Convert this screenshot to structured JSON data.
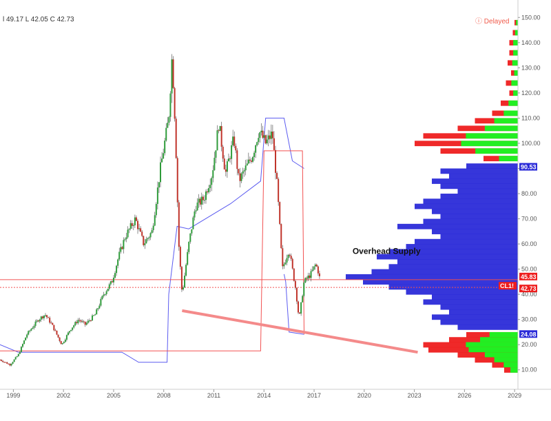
{
  "ohlc_readout": "l 49.17 L 42.05 C 42.73",
  "delayed_label": "Delayed",
  "colors": {
    "price_up": "#2e9b3a",
    "price_down": "#c0332a",
    "envelope": "#5a5af0",
    "level_line": "#f25050",
    "trend_line": "#f48a8a",
    "profile_blue": "#2b2bd8",
    "profile_green": "#22ee22",
    "profile_red": "#ee1d1d"
  },
  "chart_data": {
    "type": "candlestick",
    "xlabel": "",
    "ylabel": "",
    "x_ticks": [
      "1999",
      "2002",
      "2005",
      "2008",
      "2011",
      "2014",
      "2017",
      "2020",
      "2023",
      "2026",
      "2029"
    ],
    "y_ticks": [
      "10.00",
      "20.00",
      "30.00",
      "40.00",
      "50.00",
      "60.00",
      "70.00",
      "80.00",
      "90.00",
      "100.00",
      "110.00",
      "120.00",
      "130.00",
      "140.00",
      "150.00"
    ],
    "ylim": [
      5,
      152
    ],
    "xlim": [
      1998.2,
      2029.2
    ],
    "price_path": [
      [
        1998.2,
        14
      ],
      [
        1998.8,
        12
      ],
      [
        1999.3,
        16
      ],
      [
        1999.8,
        24
      ],
      [
        2000.5,
        30
      ],
      [
        2000.9,
        32
      ],
      [
        2001.3,
        28
      ],
      [
        2001.9,
        20
      ],
      [
        2002.4,
        26
      ],
      [
        2002.9,
        30
      ],
      [
        2003.3,
        28
      ],
      [
        2003.9,
        32
      ],
      [
        2004.4,
        40
      ],
      [
        2004.9,
        45
      ],
      [
        2005.3,
        55
      ],
      [
        2005.7,
        63
      ],
      [
        2006.3,
        70
      ],
      [
        2006.8,
        60
      ],
      [
        2007.3,
        65
      ],
      [
        2007.8,
        90
      ],
      [
        2008.3,
        110
      ],
      [
        2008.5,
        135
      ],
      [
        2008.7,
        105
      ],
      [
        2008.9,
        60
      ],
      [
        2009.1,
        40
      ],
      [
        2009.5,
        60
      ],
      [
        2009.9,
        75
      ],
      [
        2010.4,
        78
      ],
      [
        2010.9,
        88
      ],
      [
        2011.3,
        108
      ],
      [
        2011.7,
        88
      ],
      [
        2012.2,
        102
      ],
      [
        2012.5,
        85
      ],
      [
        2012.9,
        90
      ],
      [
        2013.3,
        95
      ],
      [
        2013.7,
        105
      ],
      [
        2014.1,
        100
      ],
      [
        2014.5,
        104
      ],
      [
        2014.8,
        82
      ],
      [
        2015.1,
        50
      ],
      [
        2015.5,
        58
      ],
      [
        2015.9,
        42
      ],
      [
        2016.1,
        30
      ],
      [
        2016.4,
        45
      ],
      [
        2016.8,
        48
      ],
      [
        2017.1,
        52
      ],
      [
        2017.3,
        48
      ],
      [
        2017.4,
        42.73
      ]
    ],
    "envelope": [
      [
        1998.2,
        20
      ],
      [
        1999.3,
        17
      ],
      [
        2001.5,
        17
      ],
      [
        2005.5,
        17
      ],
      [
        2006.5,
        13
      ],
      [
        2008.2,
        13
      ],
      [
        2008.3,
        40
      ],
      [
        2008.8,
        67
      ],
      [
        2009.5,
        66
      ],
      [
        2012.0,
        76
      ],
      [
        2013.8,
        85
      ],
      [
        2014.1,
        110
      ],
      [
        2015.2,
        110
      ],
      [
        2015.7,
        93
      ],
      [
        2016.4,
        90
      ]
    ],
    "support_envelope": [
      [
        2015.2,
        48
      ],
      [
        2015.3,
        45
      ],
      [
        2015.5,
        25
      ],
      [
        2016.4,
        24.08
      ]
    ],
    "step_line": [
      [
        1998.2,
        17.5
      ],
      [
        2013.8,
        17.5
      ],
      [
        2014.0,
        97
      ],
      [
        2016.3,
        97
      ],
      [
        2016.4,
        24.08
      ]
    ],
    "trend_line": [
      [
        2009.1,
        33.5
      ],
      [
        2023.2,
        17
      ]
    ],
    "levels": {
      "current_price": 42.73,
      "resistance": 45.83,
      "value_area_high": 90.53,
      "value_area_low": 24.08
    },
    "price_tags": [
      {
        "label": "90.53",
        "value": 90.53,
        "style": "blue"
      },
      {
        "label": "45.83",
        "value": 45.83,
        "style": "red"
      },
      {
        "label": "CL1!",
        "value": 42.73,
        "style": "red"
      },
      {
        "label": "42.73",
        "value": 42.73,
        "style": "red"
      },
      {
        "label": "24.08",
        "value": 24.08,
        "style": "blue"
      }
    ],
    "annotations": [
      {
        "text": "Overhead Supply",
        "x": 2019.3,
        "y": 56
      }
    ],
    "volume_profile": {
      "levels": [
        [
          147,
          0.02
        ],
        [
          143,
          0.03
        ],
        [
          139,
          0.05
        ],
        [
          135,
          0.05
        ],
        [
          131,
          0.06
        ],
        [
          127,
          0.04
        ],
        [
          123,
          0.07
        ],
        [
          119,
          0.05
        ],
        [
          115,
          0.1
        ],
        [
          111,
          0.15
        ],
        [
          108,
          0.25
        ],
        [
          105,
          0.35
        ],
        [
          102,
          0.55
        ],
        [
          99,
          0.6
        ],
        [
          96,
          0.45
        ],
        [
          93,
          0.2
        ],
        [
          90,
          0.3
        ],
        [
          88,
          0.45
        ],
        [
          86,
          0.4
        ],
        [
          84,
          0.5
        ],
        [
          82,
          0.45
        ],
        [
          80,
          0.35
        ],
        [
          78,
          0.45
        ],
        [
          76,
          0.55
        ],
        [
          74,
          0.6
        ],
        [
          72,
          0.5
        ],
        [
          70,
          0.45
        ],
        [
          68,
          0.55
        ],
        [
          66,
          0.7
        ],
        [
          64,
          0.5
        ],
        [
          62,
          0.45
        ],
        [
          60,
          0.6
        ],
        [
          58,
          0.65
        ],
        [
          56,
          0.75
        ],
        [
          54,
          0.82
        ],
        [
          52,
          0.7
        ],
        [
          50,
          0.75
        ],
        [
          48,
          0.85
        ],
        [
          46,
          1.0
        ],
        [
          44,
          0.9
        ],
        [
          42,
          0.75
        ],
        [
          40,
          0.65
        ],
        [
          38,
          0.5
        ],
        [
          36,
          0.55
        ],
        [
          34,
          0.45
        ],
        [
          32,
          0.4
        ],
        [
          30,
          0.5
        ],
        [
          28,
          0.45
        ],
        [
          26,
          0.35
        ],
        [
          23,
          0.3
        ],
        [
          21,
          0.4
        ],
        [
          19,
          0.55
        ],
        [
          17,
          0.52
        ],
        [
          15,
          0.35
        ],
        [
          13,
          0.25
        ],
        [
          11,
          0.15
        ],
        [
          9,
          0.08
        ]
      ]
    }
  }
}
